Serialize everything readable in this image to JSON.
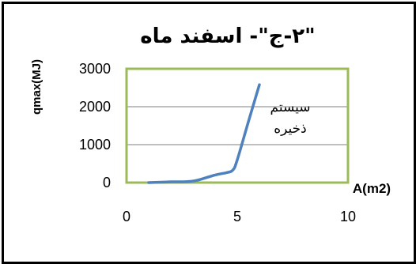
{
  "chart_data": {
    "type": "line",
    "title": "\"۲-ج\"- اسفند ماه",
    "xlabel": "A(m2)",
    "ylabel": "qmax(MJ)",
    "xlim": [
      0,
      10
    ],
    "ylim": [
      0,
      3000
    ],
    "x_ticks": [
      "0",
      "5",
      "10"
    ],
    "y_ticks": [
      "0",
      "1000",
      "2000",
      "3000"
    ],
    "grid": true,
    "legend": "none",
    "plot_border_color": "#9BBB59",
    "series": [
      {
        "name": "سیستم ذخیره",
        "name_lines": [
          "سیستم",
          "ذخیره"
        ],
        "color": "#4F81BD",
        "x": [
          1,
          2,
          3,
          4,
          4.5,
          4.8,
          5,
          5.5,
          6
        ],
        "y": [
          0,
          20,
          40,
          200,
          260,
          330,
          600,
          1600,
          2580
        ]
      }
    ]
  }
}
